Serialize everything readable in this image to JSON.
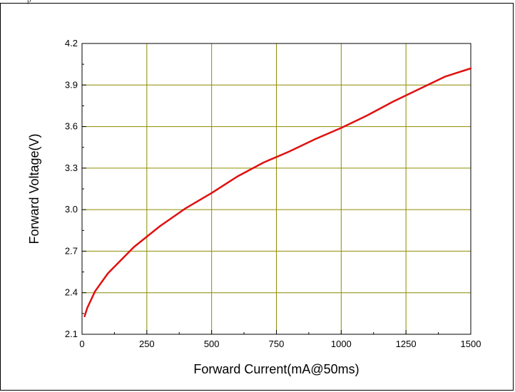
{
  "top_fragment": "p",
  "chart_data": {
    "type": "line",
    "title": "",
    "xlabel": "Forward Current(mA@50ms)",
    "ylabel": "Forward Voltage(V)",
    "xlim": [
      0,
      1500
    ],
    "ylim": [
      2.1,
      4.2
    ],
    "xticks": [
      0,
      250,
      500,
      750,
      1000,
      1250,
      1500
    ],
    "yticks": [
      2.1,
      2.4,
      2.7,
      3.0,
      3.3,
      3.6,
      3.9,
      4.2
    ],
    "xtick_labels": [
      "0",
      "250",
      "500",
      "750",
      "1000",
      "1250",
      "1500"
    ],
    "ytick_labels": [
      "2.1",
      "2.4",
      "2.7",
      "3.0",
      "3.3",
      "3.6",
      "3.9",
      "4.2"
    ],
    "grid": true,
    "grid_color": "#8c8c00",
    "line_color": "#e01010",
    "series": [
      {
        "x": [
          10,
          20,
          50,
          100,
          200,
          300,
          400,
          500,
          600,
          700,
          800,
          900,
          1000,
          1100,
          1200,
          1300,
          1400,
          1500
        ],
        "y": [
          2.23,
          2.29,
          2.41,
          2.54,
          2.73,
          2.88,
          3.01,
          3.12,
          3.24,
          3.34,
          3.42,
          3.51,
          3.59,
          3.68,
          3.78,
          3.87,
          3.96,
          4.02
        ]
      }
    ]
  }
}
